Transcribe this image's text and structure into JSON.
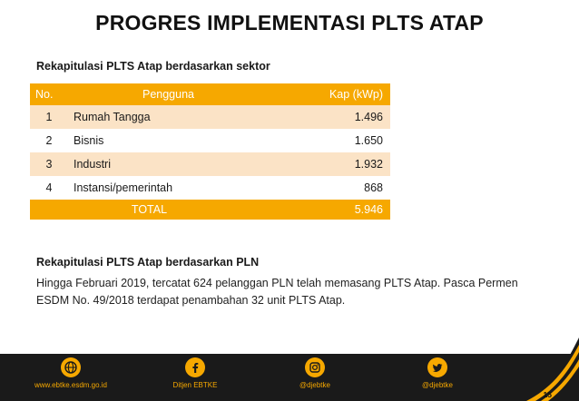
{
  "title": "PROGRES IMPLEMENTASI PLTS ATAP",
  "section1_heading": "Rekapitulasi PLTS Atap berdasarkan sektor",
  "table": {
    "headers": [
      "No.",
      "Pengguna",
      "Kap (kWp)"
    ],
    "rows": [
      {
        "no": "1",
        "user": "Rumah Tangga",
        "kap": "1.496"
      },
      {
        "no": "2",
        "user": "Bisnis",
        "kap": "1.650"
      },
      {
        "no": "3",
        "user": "Industri",
        "kap": "1.932"
      },
      {
        "no": "4",
        "user": "Instansi/pemerintah",
        "kap": "868"
      }
    ],
    "total_label": "TOTAL",
    "total_value": "5.946"
  },
  "section2_heading": "Rekapitulasi PLTS Atap berdasarkan PLN",
  "paragraph": "Hingga Februari 2019, tercatat 624 pelanggan PLN telah memasang PLTS Atap. Pasca Permen ESDM No. 49/2018 terdapat penambahan 32 unit PLTS Atap.",
  "footer": {
    "items": [
      {
        "icon": "globe-icon",
        "label": "www.ebtke.esdm.go.id"
      },
      {
        "icon": "facebook-icon",
        "label": "Ditjen EBTKE"
      },
      {
        "icon": "instagram-icon",
        "label": "@djebtke"
      },
      {
        "icon": "twitter-icon",
        "label": "@djebtke"
      }
    ]
  },
  "page_number": "15",
  "colors": {
    "accent": "#f6a800",
    "row_tint": "#fbe3c6",
    "footer_bg": "#1a1a1a"
  }
}
